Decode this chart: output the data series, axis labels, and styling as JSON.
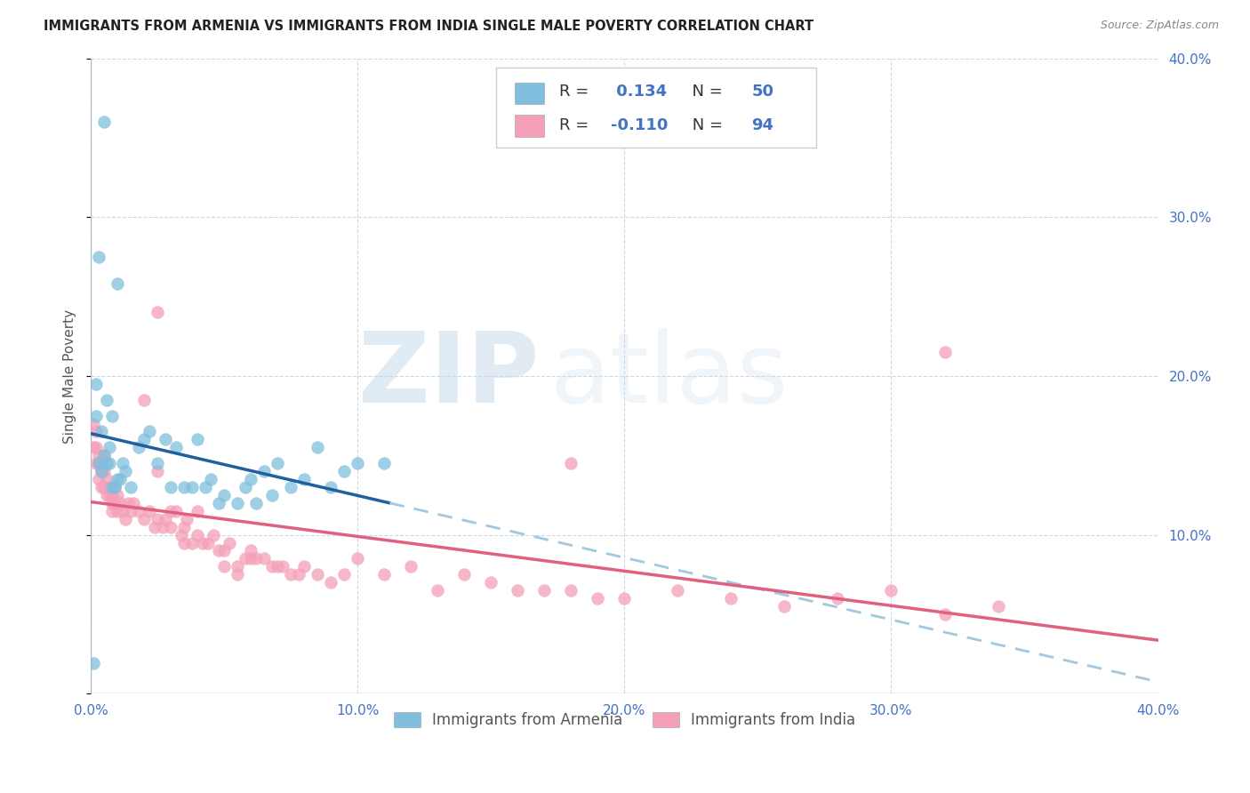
{
  "title": "IMMIGRANTS FROM ARMENIA VS IMMIGRANTS FROM INDIA SINGLE MALE POVERTY CORRELATION CHART",
  "source": "Source: ZipAtlas.com",
  "ylabel": "Single Male Poverty",
  "xlim": [
    0.0,
    0.4
  ],
  "ylim": [
    0.0,
    0.4
  ],
  "xtick_vals": [
    0.0,
    0.1,
    0.2,
    0.3,
    0.4
  ],
  "ytick_vals": [
    0.0,
    0.1,
    0.2,
    0.3,
    0.4
  ],
  "xtick_labels": [
    "0.0%",
    "10.0%",
    "20.0%",
    "30.0%",
    "40.0%"
  ],
  "ytick_labels": [
    "",
    "10.0%",
    "20.0%",
    "30.0%",
    "40.0%"
  ],
  "armenia_color": "#7fbfdd",
  "india_color": "#f4a0b8",
  "armenia_line_color": "#2060a0",
  "india_line_color": "#e06080",
  "armenia_dash_color": "#a0c8e0",
  "armenia_R": 0.134,
  "armenia_N": 50,
  "india_R": -0.11,
  "india_N": 94,
  "legend_label_armenia": "Immigrants from Armenia",
  "legend_label_india": "Immigrants from India",
  "armenia_x": [
    0.001,
    0.005,
    0.002,
    0.003,
    0.01,
    0.002,
    0.004,
    0.006,
    0.007,
    0.008,
    0.003,
    0.004,
    0.005,
    0.006,
    0.007,
    0.008,
    0.009,
    0.01,
    0.011,
    0.012,
    0.013,
    0.015,
    0.018,
    0.02,
    0.022,
    0.025,
    0.028,
    0.03,
    0.032,
    0.035,
    0.038,
    0.04,
    0.043,
    0.045,
    0.048,
    0.05,
    0.055,
    0.058,
    0.06,
    0.062,
    0.065,
    0.068,
    0.07,
    0.075,
    0.08,
    0.085,
    0.09,
    0.095,
    0.1,
    0.11
  ],
  "armenia_y": [
    0.019,
    0.36,
    0.195,
    0.275,
    0.258,
    0.175,
    0.165,
    0.185,
    0.155,
    0.175,
    0.145,
    0.14,
    0.15,
    0.145,
    0.145,
    0.13,
    0.13,
    0.135,
    0.135,
    0.145,
    0.14,
    0.13,
    0.155,
    0.16,
    0.165,
    0.145,
    0.16,
    0.13,
    0.155,
    0.13,
    0.13,
    0.16,
    0.13,
    0.135,
    0.12,
    0.125,
    0.12,
    0.13,
    0.135,
    0.12,
    0.14,
    0.125,
    0.145,
    0.13,
    0.135,
    0.155,
    0.13,
    0.14,
    0.145,
    0.145
  ],
  "india_x": [
    0.001,
    0.001,
    0.002,
    0.002,
    0.002,
    0.003,
    0.003,
    0.003,
    0.004,
    0.004,
    0.004,
    0.005,
    0.005,
    0.005,
    0.006,
    0.006,
    0.007,
    0.007,
    0.008,
    0.008,
    0.008,
    0.009,
    0.009,
    0.01,
    0.01,
    0.011,
    0.012,
    0.013,
    0.014,
    0.015,
    0.016,
    0.018,
    0.02,
    0.02,
    0.022,
    0.024,
    0.025,
    0.025,
    0.027,
    0.028,
    0.03,
    0.03,
    0.032,
    0.034,
    0.035,
    0.036,
    0.038,
    0.04,
    0.04,
    0.042,
    0.044,
    0.046,
    0.048,
    0.05,
    0.05,
    0.052,
    0.055,
    0.055,
    0.058,
    0.06,
    0.06,
    0.062,
    0.065,
    0.068,
    0.07,
    0.072,
    0.075,
    0.078,
    0.08,
    0.085,
    0.09,
    0.095,
    0.1,
    0.11,
    0.12,
    0.13,
    0.14,
    0.15,
    0.16,
    0.17,
    0.18,
    0.19,
    0.2,
    0.22,
    0.24,
    0.26,
    0.28,
    0.3,
    0.32,
    0.34,
    0.025,
    0.035,
    0.18,
    0.32
  ],
  "india_y": [
    0.155,
    0.17,
    0.145,
    0.155,
    0.165,
    0.145,
    0.15,
    0.135,
    0.14,
    0.145,
    0.13,
    0.13,
    0.14,
    0.15,
    0.125,
    0.135,
    0.125,
    0.13,
    0.125,
    0.12,
    0.115,
    0.13,
    0.12,
    0.125,
    0.115,
    0.12,
    0.115,
    0.11,
    0.12,
    0.115,
    0.12,
    0.115,
    0.185,
    0.11,
    0.115,
    0.105,
    0.14,
    0.11,
    0.105,
    0.11,
    0.115,
    0.105,
    0.115,
    0.1,
    0.105,
    0.11,
    0.095,
    0.1,
    0.115,
    0.095,
    0.095,
    0.1,
    0.09,
    0.09,
    0.08,
    0.095,
    0.08,
    0.075,
    0.085,
    0.085,
    0.09,
    0.085,
    0.085,
    0.08,
    0.08,
    0.08,
    0.075,
    0.075,
    0.08,
    0.075,
    0.07,
    0.075,
    0.085,
    0.075,
    0.08,
    0.065,
    0.075,
    0.07,
    0.065,
    0.065,
    0.065,
    0.06,
    0.06,
    0.065,
    0.06,
    0.055,
    0.06,
    0.065,
    0.05,
    0.055,
    0.24,
    0.095,
    0.145,
    0.215
  ]
}
